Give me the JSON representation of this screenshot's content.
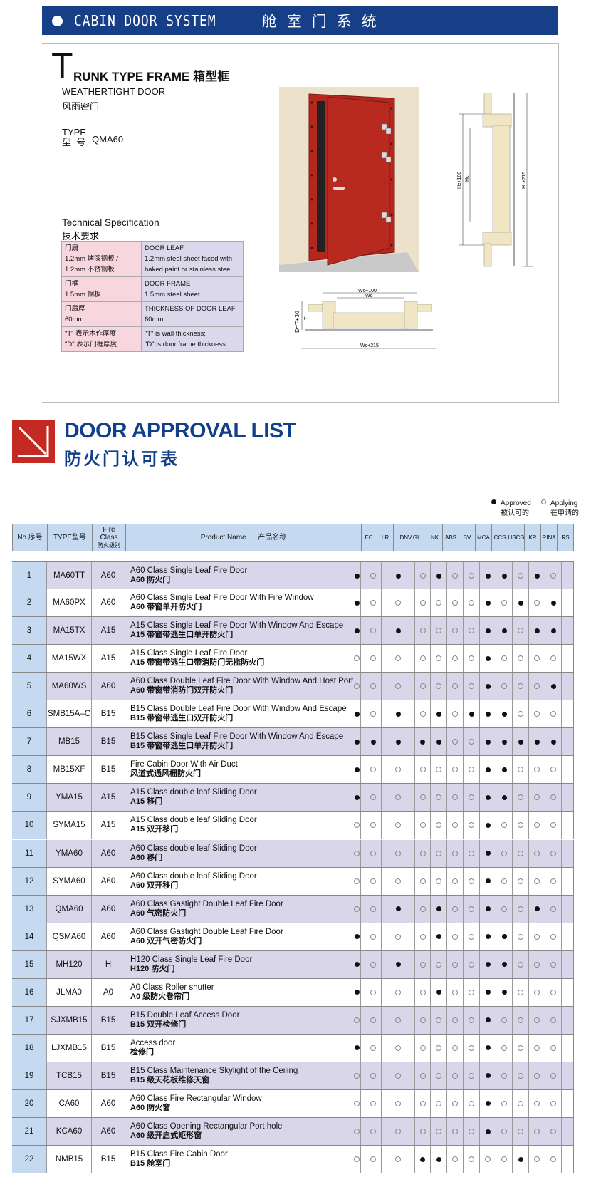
{
  "banner": {
    "title_en": "CABIN DOOR SYSTEM",
    "title_zh": "舱室门系统"
  },
  "product": {
    "title_initial": "T",
    "title_rest": "RUNK TYPE FRAME",
    "title_zh": "箱型框",
    "subtitle_en": "WEATHERTIGHT   DOOR",
    "subtitle_zh": "风雨密门",
    "type_label_en": "TYPE",
    "type_label_zh": "型  号",
    "type_value": "QMA60",
    "spec_title_en": "Technical Specification",
    "spec_title_zh": "技术要求",
    "spec_rows": [
      {
        "zh": [
          "门扇",
          "1.2mm 烤漆钢板 /",
          "1.2mm 不锈钢板"
        ],
        "en": [
          "DOOR LEAF",
          "1.2mm steel sheet faced  with",
          "baked paint or stainless steel"
        ]
      },
      {
        "zh": [
          "门框",
          "1.5mm 钢板"
        ],
        "en": [
          "DOOR FRAME",
          "1.5mm steel sheet"
        ]
      },
      {
        "zh": [
          "门扇厚",
          "60mm"
        ],
        "en": [
          "THICKNESS OF DOOR LEAF",
          "60mm"
        ]
      },
      {
        "zh": [
          "\"T\" 表示木作厚度",
          "\"D\" 表示门框厚度"
        ],
        "en": [
          "\"T\" is wall thickness;",
          "\"D\" is door frame thickness."
        ]
      }
    ],
    "drawing_labels": {
      "hc100": "Hc+100",
      "hc": "Hc",
      "hc215": "Hc+215",
      "wc100": "Wc+100",
      "wc": "Wc",
      "wc215": "Wc+215",
      "dt30": "D=T+30",
      "t": "T"
    },
    "colors": {
      "door": "#b3271f",
      "wall": "#ece2cc"
    }
  },
  "list": {
    "title_en": "DOOR APPROVAL LIST",
    "title_zh": "防火门认可表",
    "legend": {
      "approved_en": "Approved",
      "approved_zh": "被认可的",
      "applying_en": "Applying",
      "applying_zh": "在申请的"
    },
    "headers": {
      "no": "No.序号",
      "type": "TYPE型号",
      "class_en": "Fire\nClass",
      "class_zh": "防火级别",
      "product": "Product Name      产品名称"
    },
    "societies": [
      "EC",
      "LR",
      "DNV.GL",
      "NK",
      "ABS",
      "BV",
      "MCA",
      "CCS",
      "USCG",
      "KR",
      "RINA",
      "RS"
    ],
    "rows": [
      {
        "no": "1",
        "type": "MA60TT",
        "class": "A60",
        "en": "A60 Class Single Leaf Fire Door",
        "zh": "A60 防火门",
        "approvals": [
          1,
          0,
          1,
          0,
          1,
          0,
          0,
          1,
          1,
          0,
          1,
          0
        ]
      },
      {
        "no": "2",
        "type": "MA60PX",
        "class": "A60",
        "en": "A60 Class Single Leaf Fire Door With Fire Window",
        "zh": "A60 带窗单开防火门",
        "approvals": [
          1,
          0,
          0,
          0,
          0,
          0,
          0,
          1,
          0,
          1,
          0,
          1
        ]
      },
      {
        "no": "3",
        "type": "MA15TX",
        "class": "A15",
        "en": "A15 Class Single Leaf Fire Door With Window And Escape",
        "zh": "A15 带窗带逃生口单开防火门",
        "approvals": [
          1,
          0,
          1,
          0,
          0,
          0,
          0,
          1,
          1,
          0,
          1,
          1
        ]
      },
      {
        "no": "4",
        "type": "MA15WX",
        "class": "A15",
        "en": "A15 Class Single Leaf Fire Door",
        "zh": "A15 带窗带逃生口带消防门无槛防火门",
        "approvals": [
          0,
          0,
          0,
          0,
          0,
          0,
          0,
          1,
          0,
          0,
          0,
          0
        ]
      },
      {
        "no": "5",
        "type": "MA60WS",
        "class": "A60",
        "en": "A60 Class Double Leaf Fire Door With Window And Host Port",
        "zh": "A60 带窗带消防门双开防火门",
        "approvals": [
          0,
          0,
          0,
          0,
          0,
          0,
          0,
          1,
          0,
          0,
          0,
          1
        ]
      },
      {
        "no": "6",
        "type": "SMB15A–C",
        "class": "B15",
        "en": "B15 Class Double Leaf Fire Door With Window And Escape",
        "zh": "B15 带窗带逃生口双开防火门",
        "approvals": [
          1,
          0,
          1,
          0,
          1,
          0,
          1,
          1,
          1,
          0,
          0,
          0
        ]
      },
      {
        "no": "7",
        "type": "MB15",
        "class": "B15",
        "en": "B15 Class Single Leaf Fire Door With Window And Escape",
        "zh": "B15 带窗带逃生口单开防火门",
        "approvals": [
          1,
          1,
          1,
          1,
          1,
          0,
          0,
          1,
          1,
          1,
          1,
          1
        ]
      },
      {
        "no": "8",
        "type": "MB15XF",
        "class": "B15",
        "en": "Fire Cabin Door With Air Duct",
        "zh": "风道式通风栅防火门",
        "approvals": [
          1,
          0,
          0,
          0,
          0,
          0,
          0,
          1,
          1,
          0,
          0,
          0
        ]
      },
      {
        "no": "9",
        "type": "YMA15",
        "class": "A15",
        "en": "A15 Class double leaf Sliding Door",
        "zh": "A15 移门",
        "approvals": [
          1,
          0,
          0,
          0,
          0,
          0,
          0,
          1,
          1,
          0,
          0,
          0
        ]
      },
      {
        "no": "10",
        "type": "SYMA15",
        "class": "A15",
        "en": "A15 Class double leaf Sliding Door",
        "zh": "A15 双开移门",
        "approvals": [
          0,
          0,
          0,
          0,
          0,
          0,
          0,
          1,
          0,
          0,
          0,
          0
        ]
      },
      {
        "no": "11",
        "type": "YMA60",
        "class": "A60",
        "en": "A60 Class double leaf Sliding Door",
        "zh": "A60 移门",
        "approvals": [
          0,
          0,
          0,
          0,
          0,
          0,
          0,
          1,
          0,
          0,
          0,
          0
        ]
      },
      {
        "no": "12",
        "type": "SYMA60",
        "class": "A60",
        "en": "A60 Class double leaf Sliding Door",
        "zh": "A60 双开移门",
        "approvals": [
          0,
          0,
          0,
          0,
          0,
          0,
          0,
          1,
          0,
          0,
          0,
          0
        ]
      },
      {
        "no": "13",
        "type": "QMA60",
        "class": "A60",
        "en": "A60 Class Gastight Double Leaf Fire Door",
        "zh": "A60 气密防火门",
        "approvals": [
          0,
          0,
          1,
          0,
          1,
          0,
          0,
          1,
          0,
          0,
          1,
          0
        ]
      },
      {
        "no": "14",
        "type": "QSMA60",
        "class": "A60",
        "en": "A60 Class Gastight Double Leaf Fire Door",
        "zh": "A60 双开气密防火门",
        "approvals": [
          1,
          0,
          0,
          0,
          1,
          0,
          0,
          1,
          1,
          0,
          0,
          0
        ]
      },
      {
        "no": "15",
        "type": "MH120",
        "class": "H",
        "en": "H120 Class Single Leaf Fire Door",
        "zh": "H120 防火门",
        "approvals": [
          1,
          0,
          1,
          0,
          0,
          0,
          0,
          1,
          1,
          0,
          0,
          0
        ]
      },
      {
        "no": "16",
        "type": "JLMA0",
        "class": "A0",
        "en": "A0 Class Roller shutter",
        "zh": "A0 级防火卷帘门",
        "approvals": [
          1,
          0,
          0,
          0,
          1,
          0,
          0,
          1,
          1,
          0,
          0,
          0
        ]
      },
      {
        "no": "17",
        "type": "SJXMB15",
        "class": "B15",
        "en": "B15  Double Leaf Access Door",
        "zh": "B15 双开检修门",
        "approvals": [
          0,
          0,
          0,
          0,
          0,
          0,
          0,
          1,
          0,
          0,
          0,
          0
        ]
      },
      {
        "no": "18",
        "type": "LJXMB15",
        "class": "B15",
        "en": "Access door",
        "zh": "检修门",
        "approvals": [
          1,
          0,
          0,
          0,
          0,
          0,
          0,
          1,
          0,
          0,
          0,
          0
        ]
      },
      {
        "no": "19",
        "type": "TCB15",
        "class": "B15",
        "en": "B15 Class Maintenance Skylight of the Ceiling",
        "zh": "B15 级天花板维修天窗",
        "approvals": [
          0,
          0,
          0,
          0,
          0,
          0,
          0,
          1,
          0,
          0,
          0,
          0
        ]
      },
      {
        "no": "20",
        "type": "CA60",
        "class": "A60",
        "en": "A60 Class Fire Rectangular Window",
        "zh": "A60 防火窗",
        "approvals": [
          0,
          0,
          0,
          0,
          0,
          0,
          0,
          1,
          0,
          0,
          0,
          0
        ]
      },
      {
        "no": "21",
        "type": "KCA60",
        "class": "A60",
        "en": "A60 Class  Opening Rectangular Port hole",
        "zh": "A60 级开启式矩形窗",
        "approvals": [
          0,
          0,
          0,
          0,
          0,
          0,
          0,
          1,
          0,
          0,
          0,
          0
        ]
      },
      {
        "no": "22",
        "type": "NMB15",
        "class": "B15",
        "en": "B15 Class Fire Cabin Door",
        "zh": "B15 舱室门",
        "approvals": [
          0,
          0,
          0,
          1,
          1,
          0,
          0,
          0,
          0,
          1,
          0,
          0
        ]
      }
    ],
    "colors": {
      "title": "#123f8c",
      "logo": "#c52a22",
      "shade": "#d9d6ea",
      "header": "#c5daf0"
    }
  }
}
